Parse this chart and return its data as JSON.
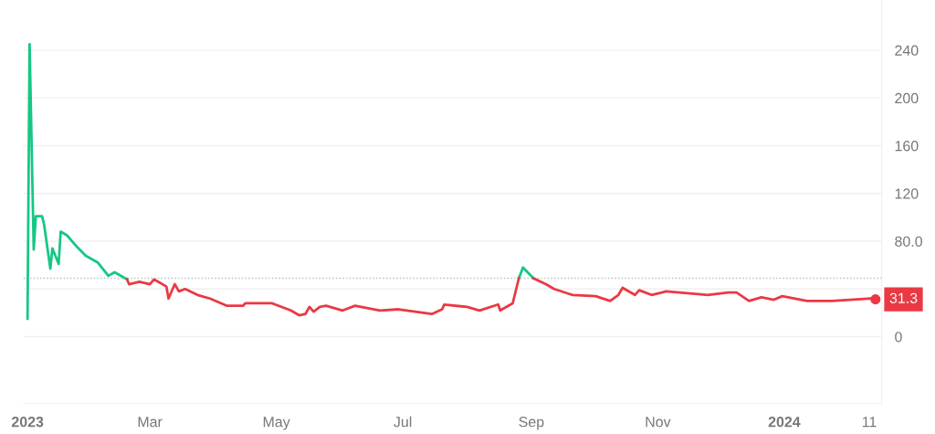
{
  "chart_data": {
    "type": "line",
    "series": [
      {
        "color": "#16c784",
        "x": [
          "2023-01-01",
          "2023-01-02",
          "2023-01-04",
          "2023-01-05",
          "2023-01-08",
          "2023-01-09",
          "2023-01-12",
          "2023-01-13",
          "2023-01-16",
          "2023-01-17",
          "2023-01-20",
          "2023-01-25",
          "2023-01-29",
          "2023-02-04",
          "2023-02-09",
          "2023-02-12",
          "2023-02-18",
          "2023-08-24",
          "2023-08-26",
          "2023-08-28",
          "2023-09-02"
        ],
        "values": [
          15,
          245,
          73,
          101,
          101,
          94,
          57,
          74,
          61,
          88,
          85,
          75,
          68,
          62,
          51,
          54,
          48,
          null,
          49,
          58,
          49
        ]
      },
      {
        "color": "#ea3943",
        "x": [
          "2023-02-18",
          "2023-02-19",
          "2023-02-24",
          "2023-03-01",
          "2023-03-03",
          "2023-03-09",
          "2023-03-10",
          "2023-03-13",
          "2023-03-15",
          "2023-03-18",
          "2023-03-24",
          "2023-03-30",
          "2023-04-07",
          "2023-04-15",
          "2023-04-16",
          "2023-04-29",
          "2023-05-08",
          "2023-05-12",
          "2023-05-15",
          "2023-05-17",
          "2023-05-19",
          "2023-05-22",
          "2023-05-25",
          "2023-06-02",
          "2023-06-08",
          "2023-06-20",
          "2023-06-29",
          "2023-07-15",
          "2023-07-20",
          "2023-07-21",
          "2023-08-01",
          "2023-08-07",
          "2023-08-16",
          "2023-08-17",
          "2023-08-23",
          "2023-08-26",
          "2023-08-27",
          "2023-09-02",
          "2023-09-08",
          "2023-09-12",
          "2023-09-19",
          "2023-09-21",
          "2023-10-02",
          "2023-10-09",
          "2023-10-13",
          "2023-10-15",
          "2023-10-21",
          "2023-10-23",
          "2023-10-29",
          "2023-11-03",
          "2023-11-05",
          "2023-11-25",
          "2023-12-05",
          "2023-12-09",
          "2023-12-15",
          "2023-12-21",
          "2023-12-27",
          "2023-12-31",
          "2024-01-12",
          "2024-01-24",
          "2024-02-12",
          "2024-02-14"
        ],
        "values": [
          48,
          44,
          46,
          44,
          48,
          42,
          32,
          44,
          38,
          40,
          35,
          32,
          26,
          26,
          28,
          28,
          22,
          18,
          19,
          25,
          21,
          25,
          26,
          22,
          26,
          22,
          23,
          19,
          23,
          27,
          25,
          22,
          27,
          22,
          28,
          49,
          null,
          49,
          44,
          40,
          36,
          35,
          34,
          30,
          35,
          41,
          35,
          39,
          35,
          37,
          38,
          35,
          37,
          37,
          30,
          33,
          31,
          34,
          30,
          30,
          32,
          31.3
        ]
      }
    ],
    "xlim": [
      "2022-12-30",
      "2024-02-17"
    ],
    "xticks": [
      {
        "value": "2023-01-01",
        "label": "2023"
      },
      {
        "value": "2023-03-01",
        "label": "Mar"
      },
      {
        "value": "2023-05-01",
        "label": "May"
      },
      {
        "value": "2023-07-01",
        "label": "Jul"
      },
      {
        "value": "2023-09-01",
        "label": "Sep"
      },
      {
        "value": "2023-11-01",
        "label": "Nov"
      },
      {
        "value": "2024-01-01",
        "label": "2024"
      },
      {
        "value": "2024-02-11",
        "label": "11"
      }
    ],
    "ylim": [
      -56,
      282
    ],
    "yticks": [
      0,
      {
        "value": 40,
        "label": null
      },
      {
        "value": 80,
        "label": "80.0"
      },
      120,
      160,
      200,
      240
    ],
    "grid": "y",
    "ref_lines": [
      {
        "axis": "y",
        "value": 49,
        "color": "#bbbbbb",
        "line_style": "dotted"
      }
    ],
    "annotations": [
      {
        "text": "31.3",
        "x": "2024-02-14",
        "y": 31.3
      }
    ]
  }
}
